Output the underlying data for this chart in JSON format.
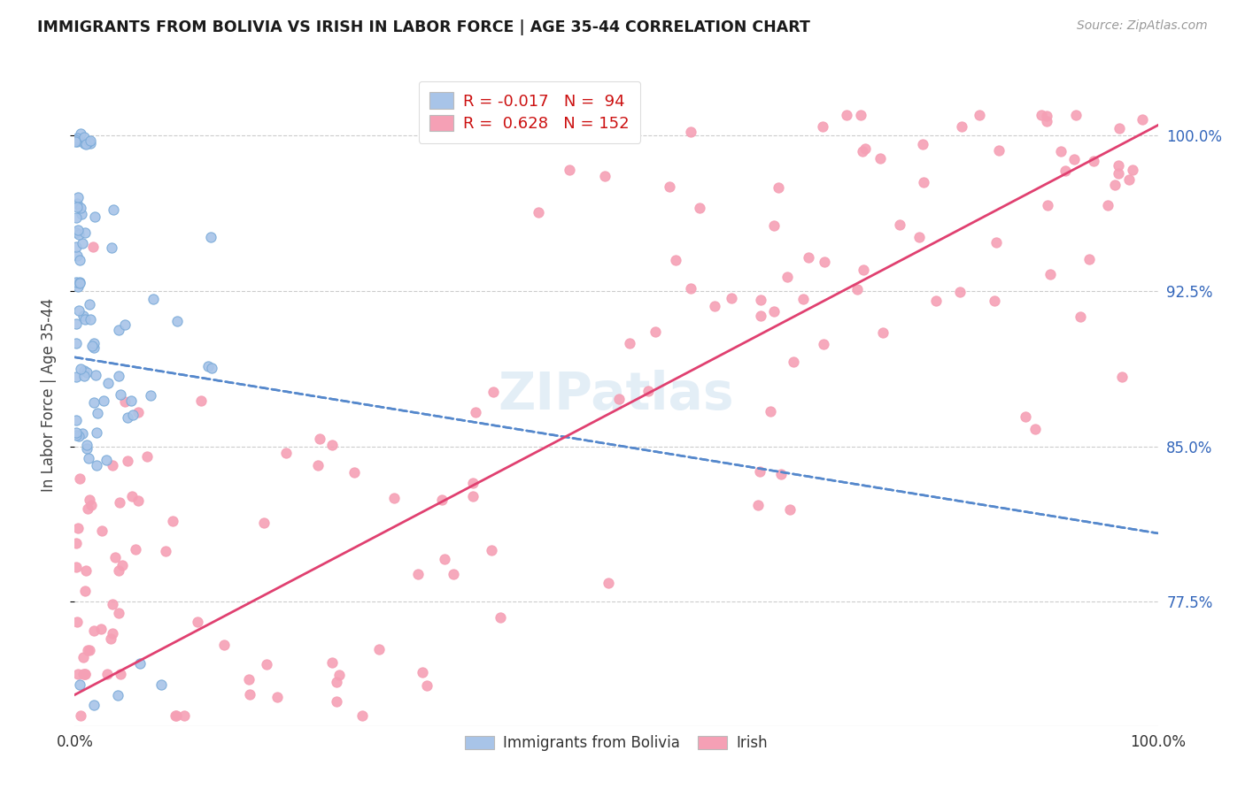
{
  "title": "IMMIGRANTS FROM BOLIVIA VS IRISH IN LABOR FORCE | AGE 35-44 CORRELATION CHART",
  "source": "Source: ZipAtlas.com",
  "ylabel": "In Labor Force | Age 35-44",
  "xlim": [
    0.0,
    1.0
  ],
  "ylim": [
    0.715,
    1.035
  ],
  "yticks": [
    0.775,
    0.85,
    0.925,
    1.0
  ],
  "ytick_labels": [
    "77.5%",
    "85.0%",
    "92.5%",
    "100.0%"
  ],
  "xtick_labels": [
    "0.0%",
    "100.0%"
  ],
  "bolivia_color": "#a8c4e8",
  "irish_color": "#f5a0b5",
  "bolivia_R": -0.017,
  "bolivia_N": 94,
  "irish_R": 0.628,
  "irish_N": 152,
  "watermark": "ZIPatlas"
}
